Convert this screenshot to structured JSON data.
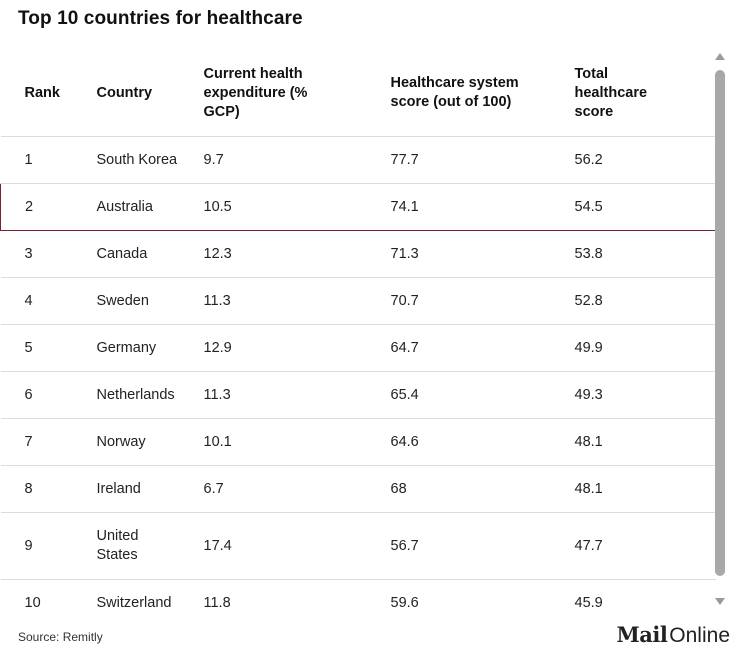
{
  "title": "Top 10 countries for healthcare",
  "source": "Source: Remitly",
  "logo": {
    "part1": "Mail",
    "part2": "Online"
  },
  "chart_data": {
    "type": "table",
    "title": "Top 10 countries for healthcare",
    "columns": [
      "Rank",
      "Country",
      "Current health expenditure (% GCP)",
      "Healthcare system score (out of 100)",
      "Total healthcare score"
    ],
    "rows": [
      {
        "rank": "1",
        "country": "South Korea",
        "expenditure": "9.7",
        "system_score": "77.7",
        "total_score": "56.2"
      },
      {
        "rank": "2",
        "country": "Australia",
        "expenditure": "10.5",
        "system_score": "74.1",
        "total_score": "54.5"
      },
      {
        "rank": "3",
        "country": "Canada",
        "expenditure": "12.3",
        "system_score": "71.3",
        "total_score": "53.8"
      },
      {
        "rank": "4",
        "country": "Sweden",
        "expenditure": "11.3",
        "system_score": "70.7",
        "total_score": "52.8"
      },
      {
        "rank": "5",
        "country": "Germany",
        "expenditure": "12.9",
        "system_score": "64.7",
        "total_score": "49.9"
      },
      {
        "rank": "6",
        "country": "Netherlands",
        "expenditure": "11.3",
        "system_score": "65.4",
        "total_score": "49.3"
      },
      {
        "rank": "7",
        "country": "Norway",
        "expenditure": "10.1",
        "system_score": "64.6",
        "total_score": "48.1"
      },
      {
        "rank": "8",
        "country": "Ireland",
        "expenditure": "6.7",
        "system_score": "68",
        "total_score": "48.1"
      },
      {
        "rank": "9",
        "country": "United States",
        "expenditure": "17.4",
        "system_score": "56.7",
        "total_score": "47.7"
      },
      {
        "rank": "10",
        "country": "Switzerland",
        "expenditure": "11.8",
        "system_score": "59.6",
        "total_score": "45.9"
      }
    ],
    "highlighted_rank": "2",
    "highlight_color": "#7a2230"
  }
}
